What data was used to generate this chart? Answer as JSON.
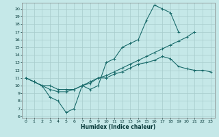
{
  "xlabel": "Humidex (Indice chaleur)",
  "xlim": [
    -0.5,
    23.5
  ],
  "ylim": [
    5.8,
    20.8
  ],
  "yticks": [
    6,
    7,
    8,
    9,
    10,
    11,
    12,
    13,
    14,
    15,
    16,
    17,
    18,
    19,
    20
  ],
  "xticks": [
    0,
    1,
    2,
    3,
    4,
    5,
    6,
    7,
    8,
    9,
    10,
    11,
    12,
    13,
    14,
    15,
    16,
    17,
    18,
    19,
    20,
    21,
    22,
    23
  ],
  "bg_color": "#c5e8e8",
  "grid_color": "#a8cccc",
  "line_color": "#1a6b6b",
  "curve_max_x": [
    0,
    1,
    2,
    3,
    4,
    5,
    6,
    7,
    8,
    9,
    10,
    11,
    12,
    13,
    14,
    15,
    16,
    17,
    18,
    19
  ],
  "curve_max_y": [
    11.0,
    10.5,
    10.0,
    8.5,
    8.0,
    6.5,
    7.0,
    10.0,
    9.5,
    10.0,
    13.0,
    13.5,
    15.0,
    15.5,
    16.0,
    18.5,
    20.5,
    20.0,
    19.5,
    17.0
  ],
  "curve_mean_x": [
    0,
    1,
    2,
    3,
    4,
    5,
    6,
    7,
    8,
    9,
    10,
    11,
    12,
    13,
    14,
    15,
    16,
    17,
    18,
    19,
    20,
    21
  ],
  "curve_mean_y": [
    11.0,
    10.5,
    10.0,
    9.5,
    9.2,
    9.2,
    9.5,
    10.0,
    10.3,
    11.0,
    11.3,
    11.8,
    12.3,
    12.8,
    13.3,
    13.8,
    14.3,
    14.8,
    15.3,
    15.8,
    16.3,
    17.0
  ],
  "curve_min_x": [
    0,
    1,
    2,
    3,
    4,
    5,
    6,
    7,
    8,
    9,
    10,
    11,
    12,
    13,
    14,
    15,
    16,
    17,
    18,
    19,
    20,
    21,
    22,
    23
  ],
  "curve_min_y": [
    11.0,
    10.5,
    10.0,
    10.0,
    9.5,
    9.5,
    9.5,
    10.0,
    10.5,
    11.0,
    11.0,
    11.5,
    11.8,
    12.3,
    12.8,
    13.0,
    13.3,
    13.8,
    13.5,
    12.5,
    12.2,
    12.0,
    12.0,
    11.8
  ]
}
